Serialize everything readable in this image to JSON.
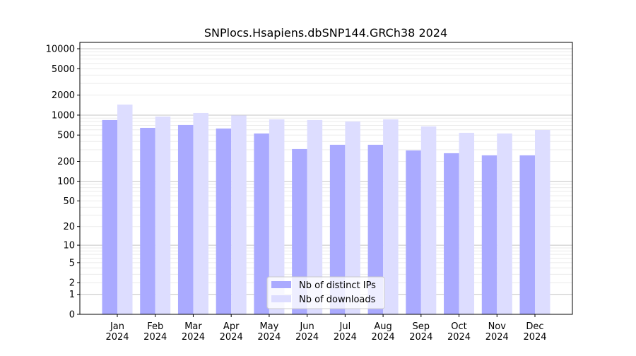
{
  "chart_data": {
    "type": "bar",
    "title": "SNPlocs.Hsapiens.dbSNP144.GRCh38 2024",
    "xlabel": "",
    "ylabel": "",
    "y_scale": "log(1+x)",
    "ylim": [
      0,
      12500
    ],
    "y_ticks": [
      0,
      1,
      2,
      5,
      10,
      20,
      50,
      100,
      200,
      500,
      1000,
      2000,
      5000,
      10000
    ],
    "y_major_grid": [
      1,
      10,
      100,
      1000,
      10000
    ],
    "grid": true,
    "legend_placement": "lower-center",
    "categories": [
      "Jan\n2024",
      "Feb\n2024",
      "Mar\n2024",
      "Apr\n2024",
      "May\n2024",
      "Jun\n2024",
      "Jul\n2024",
      "Aug\n2024",
      "Sep\n2024",
      "Oct\n2024",
      "Nov\n2024",
      "Dec\n2024"
    ],
    "series": [
      {
        "name": "Nb of distinct IPs",
        "color": "#aaaaff",
        "values": [
          843,
          643,
          710,
          628,
          528,
          308,
          357,
          357,
          293,
          266,
          247,
          247
        ]
      },
      {
        "name": "Nb of downloads",
        "color": "#ddddff",
        "values": [
          1440,
          952,
          1076,
          990,
          863,
          843,
          801,
          863,
          675,
          541,
          528,
          597
        ]
      }
    ]
  }
}
